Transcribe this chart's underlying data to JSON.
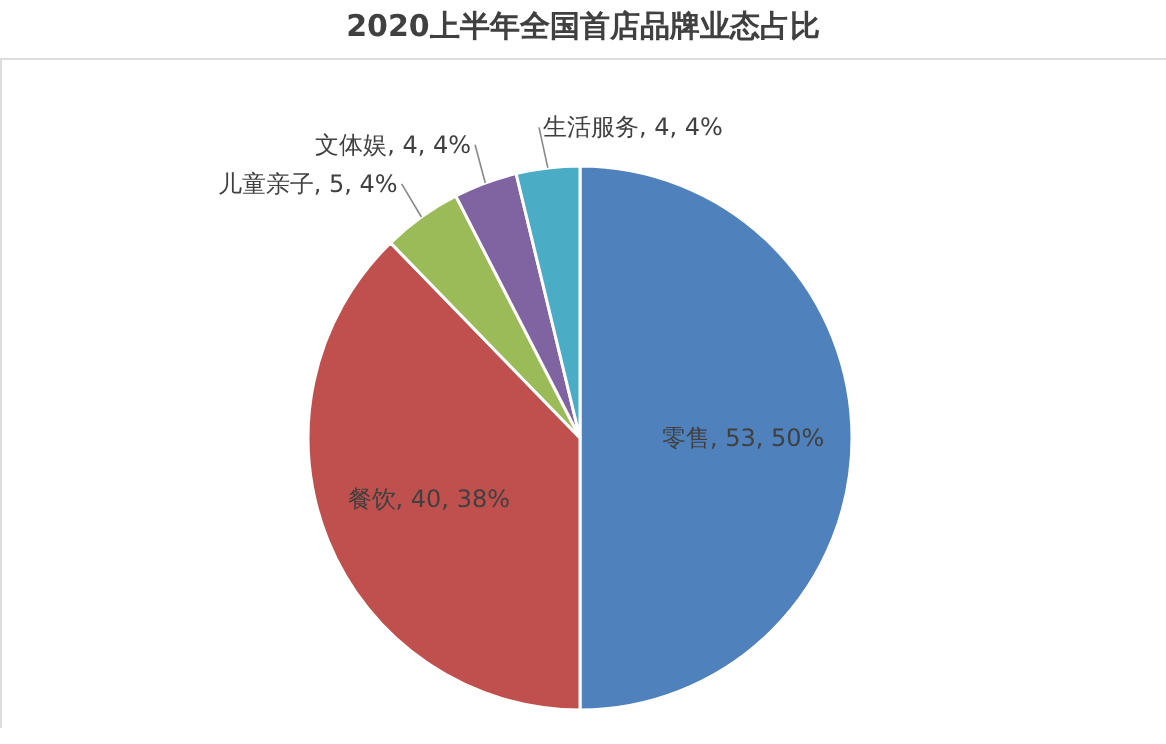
{
  "chart_data": {
    "type": "pie",
    "title": "2020上半年全国首店品牌业态占比",
    "categories": [
      "零售",
      "餐饮",
      "儿童亲子",
      "文体娱",
      "生活服务"
    ],
    "values": [
      53,
      40,
      5,
      4,
      4
    ],
    "colors": [
      "#4f81bd",
      "#c0504d",
      "#9bbb59",
      "#8064a2",
      "#4bacc6"
    ],
    "value_labels": [
      "53, 50%",
      "40, 38%",
      "5, 4%",
      "4, 4%",
      "4, 4%"
    ]
  }
}
